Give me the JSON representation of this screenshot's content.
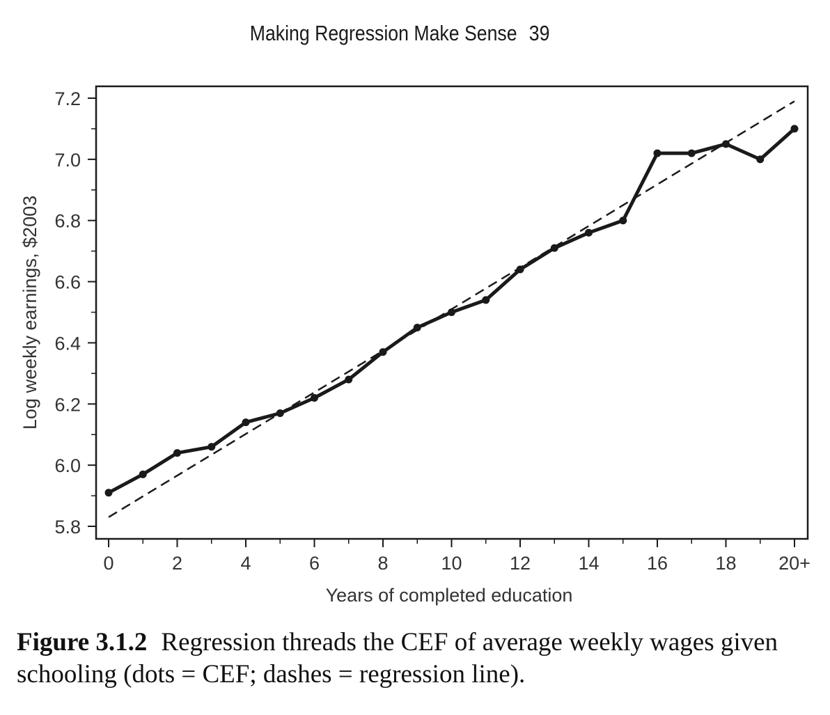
{
  "running_head": {
    "title": "Making Regression Make Sense",
    "page_number": "39"
  },
  "caption": {
    "label": "Figure 3.1.2",
    "text": "Regression threads the CEF of average weekly wages given schooling (dots = CEF; dashes = regression line)."
  },
  "colors": {
    "line": "#1a1a1a",
    "axis": "#1a1a1a",
    "text": "#333333"
  },
  "chart_data": {
    "type": "line",
    "xlabel": "Years of completed education",
    "ylabel": "Log weekly earnings, $2003",
    "xlim": [
      0,
      20
    ],
    "ylim": [
      5.8,
      7.2
    ],
    "grid": false,
    "x": [
      0,
      1,
      2,
      3,
      4,
      5,
      6,
      7,
      8,
      9,
      10,
      11,
      12,
      13,
      14,
      15,
      16,
      17,
      18,
      19,
      20
    ],
    "x_ticks": [
      0,
      2,
      4,
      6,
      8,
      10,
      12,
      14,
      16,
      18,
      20
    ],
    "x_tick_labels": [
      "0",
      "2",
      "4",
      "6",
      "8",
      "10",
      "12",
      "14",
      "16",
      "18",
      "20+"
    ],
    "y_ticks": [
      5.8,
      6.0,
      6.2,
      6.4,
      6.6,
      6.8,
      7.0,
      7.2
    ],
    "y_tick_labels": [
      "5.8",
      "6.0",
      "6.2",
      "6.4",
      "6.6",
      "6.8",
      "7.0",
      "7.2"
    ],
    "series": [
      {
        "style": "solid-with-dots",
        "values": [
          5.91,
          5.97,
          6.04,
          6.06,
          6.14,
          6.17,
          6.22,
          6.28,
          6.37,
          6.45,
          6.5,
          6.54,
          6.64,
          6.71,
          6.76,
          6.8,
          7.02,
          7.02,
          7.05,
          7.0,
          7.1
        ]
      },
      {
        "style": "dashed",
        "values": [
          5.83,
          7.19
        ],
        "x": [
          0,
          20
        ]
      }
    ]
  }
}
